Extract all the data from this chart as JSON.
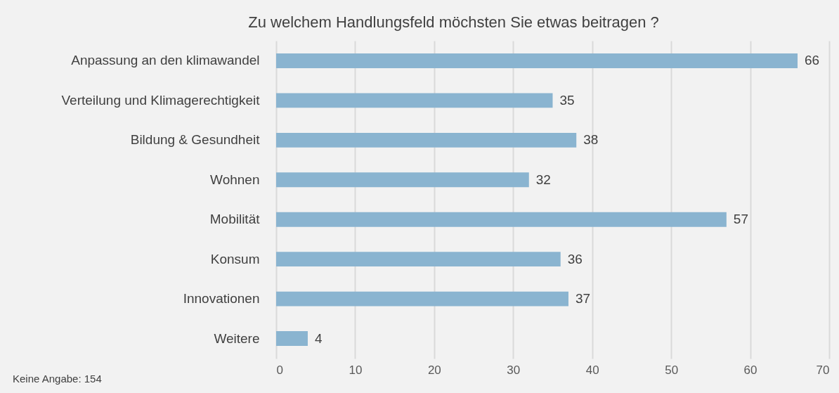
{
  "chart_data": {
    "type": "bar",
    "orientation": "horizontal",
    "title": "Zu welchem Handlungsfeld möchsten Sie etwas beitragen ?",
    "categories": [
      "Anpassung an den klimawandel",
      "Verteilung und Klimagerechtigkeit",
      "Bildung & Gesundheit",
      "Wohnen",
      "Mobilität",
      "Konsum",
      "Innovationen",
      "Weitere"
    ],
    "values": [
      66,
      35,
      38,
      32,
      57,
      36,
      37,
      4
    ],
    "color": "#8ab4d0",
    "xlim": [
      0,
      70
    ],
    "xticks": [
      0,
      10,
      20,
      30,
      40,
      50,
      60,
      70
    ],
    "grid": "x",
    "data_labels": true,
    "annotations": [
      "Keine Angabe: 154"
    ]
  }
}
